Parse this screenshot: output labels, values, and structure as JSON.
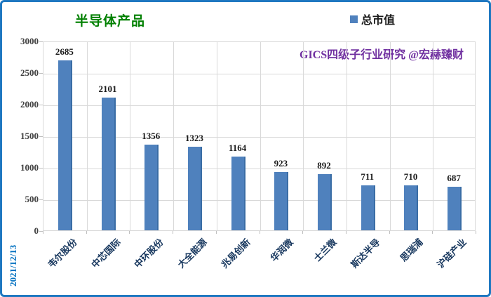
{
  "title": "半导体产品",
  "legend": {
    "label": "总市值"
  },
  "watermark": "GICS四级子行业研究 @宏赫臻财",
  "date_label": "2021/12/13",
  "chart_data": {
    "type": "bar",
    "title": "半导体产品",
    "series_name": "总市值",
    "categories": [
      "韦尔股份",
      "中芯国际",
      "中环股份",
      "大全能源",
      "兆易创新",
      "华润微",
      "士兰微",
      "斯达半导",
      "思瑞浦",
      "沪硅产业"
    ],
    "values": [
      2685,
      2101,
      1356,
      1323,
      1164,
      923,
      892,
      711,
      710,
      687
    ],
    "ylim": [
      0,
      3000
    ],
    "yticks": [
      0,
      500,
      1000,
      1500,
      2000,
      2500,
      3000
    ],
    "grid": true,
    "legend_position": "top-right",
    "annotation": "GICS四级子行业研究 @宏赫臻财",
    "date": "2021/12/13"
  },
  "colors": {
    "frame_border": "#1F78C1",
    "bar": "#4F81BD",
    "bar_edge": "#3A6DA5",
    "title": "#008000",
    "watermark": "#7030A0",
    "category_label": "#17375E",
    "date": "#0070C0",
    "gridline": "#D9D9D9",
    "tick": "#BFBFBF",
    "value_label": "#1a1a1a",
    "ytick_label": "#404040",
    "legend_label": "#1a1a1a"
  }
}
